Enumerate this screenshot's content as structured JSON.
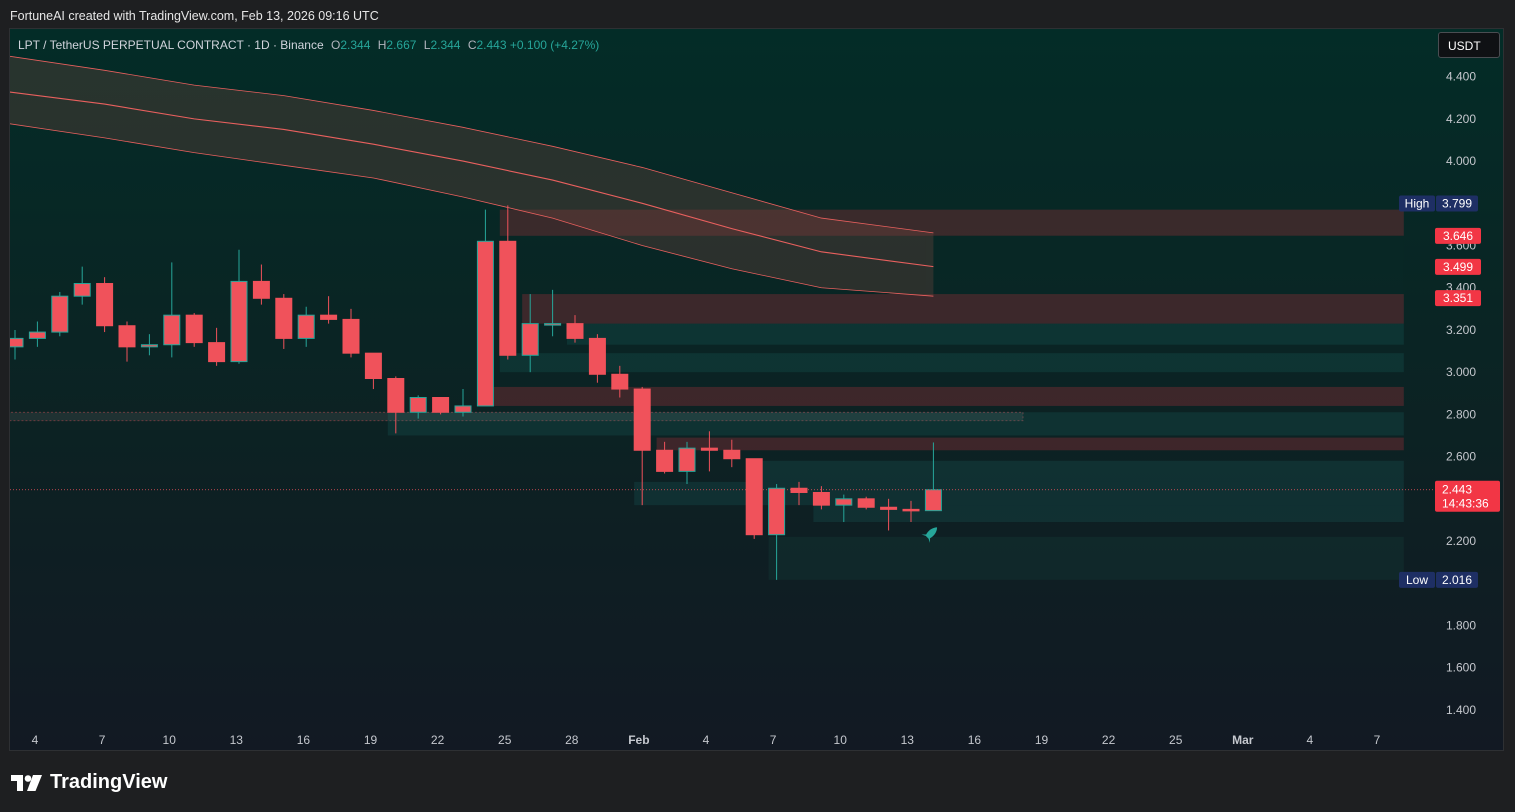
{
  "attribution": "FortuneAI created with TradingView.com, Feb 13, 2026 09:16 UTC",
  "legend": {
    "symbol": "LPT / TetherUS PERPETUAL CONTRACT · 1D · Binance",
    "o_label": "O",
    "o_value": "2.344",
    "h_label": "H",
    "h_value": "2.667",
    "l_label": "L",
    "l_value": "2.344",
    "c_label": "C",
    "c_value": "2.443",
    "change": "+0.100 (+4.27%)"
  },
  "currency_button": "USDT",
  "footer_brand": "TradingView",
  "colors": {
    "up": "#26a69a",
    "down": "#f0525b",
    "accent_blue": "#1e2f64",
    "price_label": "#f23645"
  },
  "chart_data": {
    "type": "candlestick",
    "x_tick_labels": [
      "4",
      "7",
      "10",
      "13",
      "16",
      "19",
      "22",
      "25",
      "28",
      "Feb",
      "4",
      "7",
      "10",
      "13",
      "16",
      "19",
      "22",
      "25",
      "Mar",
      "4",
      "7"
    ],
    "y_ticks": [
      1.4,
      1.6,
      1.8,
      2.0,
      2.2,
      2.4,
      2.6,
      2.8,
      3.0,
      3.2,
      3.4,
      3.6,
      3.8,
      4.0,
      4.2,
      4.4
    ],
    "y_tick_labels": [
      "1.400",
      "1.600",
      "1.800",
      "2.200",
      "2.600",
      "2.800",
      "3.000",
      "3.200",
      "3.400",
      "3.600",
      "4.000",
      "4.200",
      "4.400"
    ],
    "ylim": [
      1.3,
      4.55
    ],
    "candles": [
      {
        "o": 3.12,
        "h": 3.2,
        "l": 3.06,
        "c": 3.16
      },
      {
        "o": 3.16,
        "h": 3.24,
        "l": 3.12,
        "c": 3.19
      },
      {
        "o": 3.19,
        "h": 3.38,
        "l": 3.17,
        "c": 3.36
      },
      {
        "o": 3.36,
        "h": 3.5,
        "l": 3.32,
        "c": 3.42
      },
      {
        "o": 3.42,
        "h": 3.45,
        "l": 3.19,
        "c": 3.22
      },
      {
        "o": 3.22,
        "h": 3.24,
        "l": 3.05,
        "c": 3.12
      },
      {
        "o": 3.12,
        "h": 3.18,
        "l": 3.08,
        "c": 3.13
      },
      {
        "o": 3.13,
        "h": 3.52,
        "l": 3.07,
        "c": 3.27
      },
      {
        "o": 3.27,
        "h": 3.28,
        "l": 3.12,
        "c": 3.14
      },
      {
        "o": 3.14,
        "h": 3.21,
        "l": 3.03,
        "c": 3.05
      },
      {
        "o": 3.05,
        "h": 3.58,
        "l": 3.04,
        "c": 3.43
      },
      {
        "o": 3.43,
        "h": 3.51,
        "l": 3.32,
        "c": 3.35
      },
      {
        "o": 3.35,
        "h": 3.37,
        "l": 3.11,
        "c": 3.16
      },
      {
        "o": 3.16,
        "h": 3.31,
        "l": 3.12,
        "c": 3.27
      },
      {
        "o": 3.27,
        "h": 3.36,
        "l": 3.23,
        "c": 3.25
      },
      {
        "o": 3.25,
        "h": 3.3,
        "l": 3.07,
        "c": 3.09
      },
      {
        "o": 3.09,
        "h": 3.09,
        "l": 2.92,
        "c": 2.97
      },
      {
        "o": 2.97,
        "h": 2.98,
        "l": 2.71,
        "c": 2.81
      },
      {
        "o": 2.81,
        "h": 2.89,
        "l": 2.78,
        "c": 2.88
      },
      {
        "o": 2.88,
        "h": 2.88,
        "l": 2.8,
        "c": 2.81
      },
      {
        "o": 2.81,
        "h": 2.92,
        "l": 2.79,
        "c": 2.84
      },
      {
        "o": 2.84,
        "h": 3.77,
        "l": 2.84,
        "c": 3.62
      },
      {
        "o": 3.62,
        "h": 3.79,
        "l": 3.06,
        "c": 3.08
      },
      {
        "o": 3.08,
        "h": 3.37,
        "l": 3.0,
        "c": 3.23
      },
      {
        "o": 3.23,
        "h": 3.39,
        "l": 3.17,
        "c": 3.23
      },
      {
        "o": 3.23,
        "h": 3.27,
        "l": 3.14,
        "c": 3.16
      },
      {
        "o": 3.16,
        "h": 3.18,
        "l": 2.95,
        "c": 2.99
      },
      {
        "o": 2.99,
        "h": 3.03,
        "l": 2.88,
        "c": 2.92
      },
      {
        "o": 2.92,
        "h": 2.93,
        "l": 2.37,
        "c": 2.63
      },
      {
        "o": 2.63,
        "h": 2.67,
        "l": 2.52,
        "c": 2.53
      },
      {
        "o": 2.53,
        "h": 2.67,
        "l": 2.47,
        "c": 2.64
      },
      {
        "o": 2.64,
        "h": 2.72,
        "l": 2.53,
        "c": 2.63
      },
      {
        "o": 2.63,
        "h": 2.68,
        "l": 2.55,
        "c": 2.59
      },
      {
        "o": 2.59,
        "h": 2.59,
        "l": 2.21,
        "c": 2.23
      },
      {
        "o": 2.23,
        "h": 2.47,
        "l": 2.016,
        "c": 2.45
      },
      {
        "o": 2.45,
        "h": 2.48,
        "l": 2.37,
        "c": 2.43
      },
      {
        "o": 2.43,
        "h": 2.46,
        "l": 2.35,
        "c": 2.37
      },
      {
        "o": 2.37,
        "h": 2.42,
        "l": 2.29,
        "c": 2.4
      },
      {
        "o": 2.4,
        "h": 2.41,
        "l": 2.35,
        "c": 2.36
      },
      {
        "o": 2.36,
        "h": 2.4,
        "l": 2.25,
        "c": 2.35
      },
      {
        "o": 2.35,
        "h": 2.39,
        "l": 2.29,
        "c": 2.344
      },
      {
        "o": 2.344,
        "h": 2.667,
        "l": 2.344,
        "c": 2.443
      }
    ],
    "ema_band": {
      "upper": [
        [
          0,
          4.5
        ],
        [
          4,
          4.43
        ],
        [
          8,
          4.36
        ],
        [
          12,
          4.31
        ],
        [
          16,
          4.24
        ],
        [
          20,
          4.16
        ],
        [
          24,
          4.07
        ],
        [
          28,
          3.97
        ],
        [
          32,
          3.85
        ],
        [
          36,
          3.73
        ],
        [
          41,
          3.66
        ]
      ],
      "lower": [
        [
          0,
          4.18
        ],
        [
          4,
          4.11
        ],
        [
          8,
          4.04
        ],
        [
          12,
          3.98
        ],
        [
          16,
          3.92
        ],
        [
          20,
          3.83
        ],
        [
          24,
          3.73
        ],
        [
          28,
          3.6
        ],
        [
          32,
          3.49
        ],
        [
          36,
          3.4
        ],
        [
          41,
          3.36
        ]
      ],
      "mid": [
        [
          0,
          4.33
        ],
        [
          4,
          4.27
        ],
        [
          8,
          4.2
        ],
        [
          12,
          4.15
        ],
        [
          16,
          4.08
        ],
        [
          20,
          4.0
        ],
        [
          24,
          3.91
        ],
        [
          28,
          3.8
        ],
        [
          32,
          3.68
        ],
        [
          36,
          3.57
        ],
        [
          41,
          3.5
        ]
      ]
    },
    "zones": [
      {
        "from": 22,
        "to": 62,
        "top": 3.77,
        "bottom": 3.646,
        "kind": "bear"
      },
      {
        "from": 41,
        "to": 62,
        "top": 3.646,
        "bottom": 3.36,
        "kind": "bear-dark"
      },
      {
        "from": 23,
        "to": 62,
        "top": 3.37,
        "bottom": 3.23,
        "kind": "bear"
      },
      {
        "from": 25,
        "to": 62,
        "top": 3.23,
        "bottom": 3.13,
        "kind": "bull"
      },
      {
        "from": 22,
        "to": 62,
        "top": 3.09,
        "bottom": 3.0,
        "kind": "bull"
      },
      {
        "from": 21,
        "to": 62,
        "top": 2.93,
        "bottom": 2.84,
        "kind": "bear"
      },
      {
        "from": 0,
        "to": 45,
        "top": 2.81,
        "bottom": 2.77,
        "kind": "neutral"
      },
      {
        "from": 17,
        "to": 62,
        "top": 2.81,
        "bottom": 2.7,
        "kind": "bull"
      },
      {
        "from": 29,
        "to": 62,
        "top": 2.69,
        "bottom": 2.63,
        "kind": "bear"
      },
      {
        "from": 33,
        "to": 62,
        "top": 2.58,
        "bottom": 2.48,
        "kind": "bull"
      },
      {
        "from": 28,
        "to": 62,
        "top": 2.48,
        "bottom": 2.37,
        "kind": "bull"
      },
      {
        "from": 36,
        "to": 62,
        "top": 2.37,
        "bottom": 2.29,
        "kind": "bull"
      },
      {
        "from": 34,
        "to": 62,
        "top": 2.22,
        "bottom": 2.016,
        "kind": "bull-dark"
      }
    ],
    "price_labels": [
      {
        "tag": "High",
        "value": "3.799",
        "price": 3.799,
        "style": "blue"
      },
      {
        "value": "3.646",
        "price": 3.646,
        "style": "red"
      },
      {
        "value": "3.499",
        "price": 3.499,
        "style": "red"
      },
      {
        "value": "3.351",
        "price": 3.351,
        "style": "red"
      },
      {
        "value": "2.443",
        "sub": "14:43:36",
        "price": 2.443,
        "style": "red-big"
      },
      {
        "tag": "Low",
        "value": "2.016",
        "price": 2.016,
        "style": "blue"
      }
    ],
    "last_price": 2.443
  }
}
